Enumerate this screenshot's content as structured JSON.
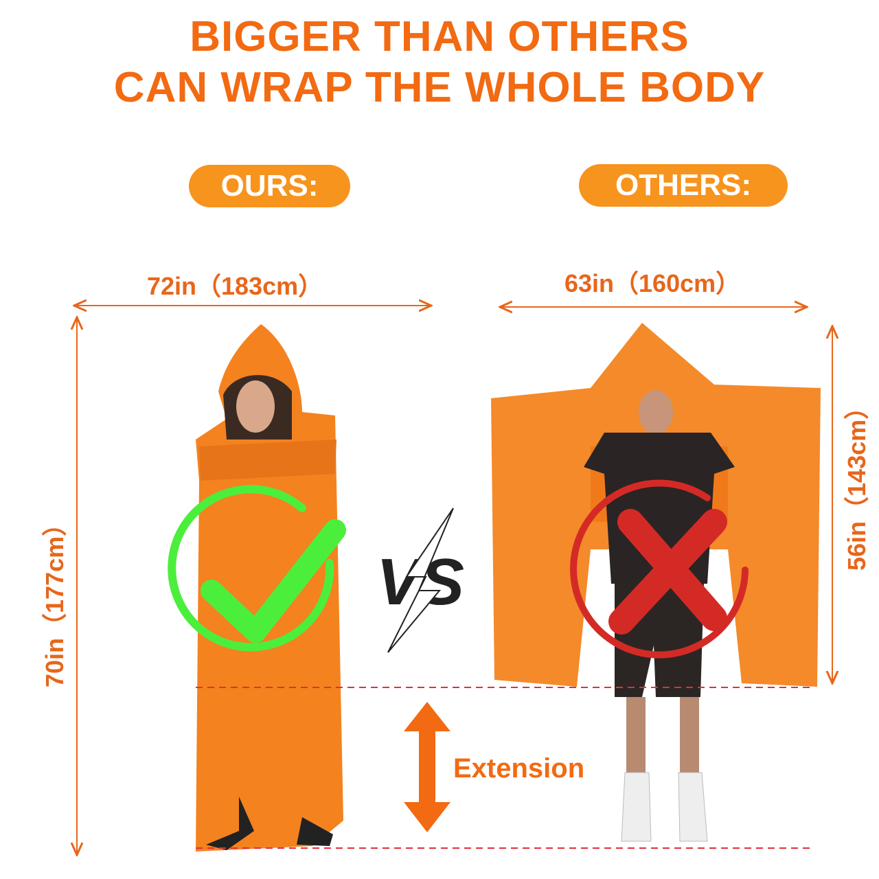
{
  "headline": {
    "line1": "BIGGER THAN OTHERS",
    "line2": "CAN WRAP THE WHOLE BODY"
  },
  "ours": {
    "label": "OURS:",
    "width": "72in（183cm）",
    "height": "70in（177cm）",
    "verdict_icon": "check-circle-icon"
  },
  "others": {
    "label": "OTHERS:",
    "width": "63in（160cm）",
    "height": "56in（143cm）",
    "verdict_icon": "x-circle-icon"
  },
  "vs": "VS",
  "extension_label": "Extension",
  "colors": {
    "accent": "#f26a12",
    "pill": "#f7941d",
    "blanket": "#f4821f",
    "check": "#4cee3c",
    "cross": "#d42a26",
    "guide": "#e0303a"
  }
}
